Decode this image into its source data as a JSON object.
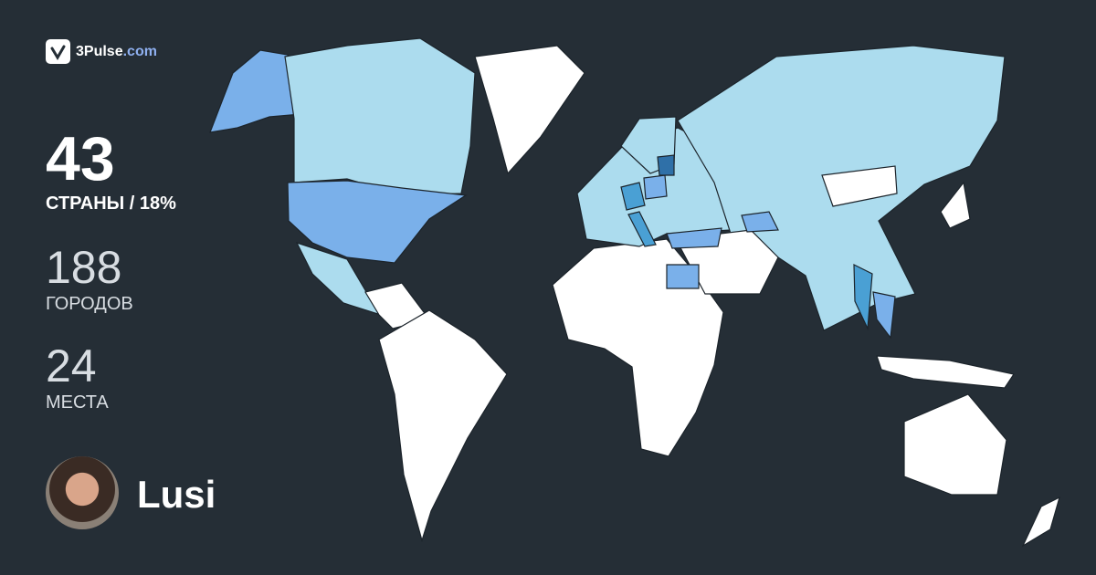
{
  "brand": {
    "name": "3Pulse",
    "domain": ".com",
    "icon": "checkmark-pulse-icon"
  },
  "stats": {
    "countries": {
      "value": "43",
      "label": "СТРАНЫ / 18%"
    },
    "cities": {
      "value": "188",
      "label": "ГОРОДОВ"
    },
    "places": {
      "value": "24",
      "label": "МЕСТА"
    }
  },
  "user": {
    "name": "Lusi"
  },
  "colors": {
    "background": "#252e36",
    "visited_light": "#acdcee",
    "visited_mid": "#7ab0ea",
    "visited_strong": "#4aa0d4",
    "visited_dark": "#2f70a8",
    "unvisited": "#ffffff",
    "border": "#1c242b"
  }
}
